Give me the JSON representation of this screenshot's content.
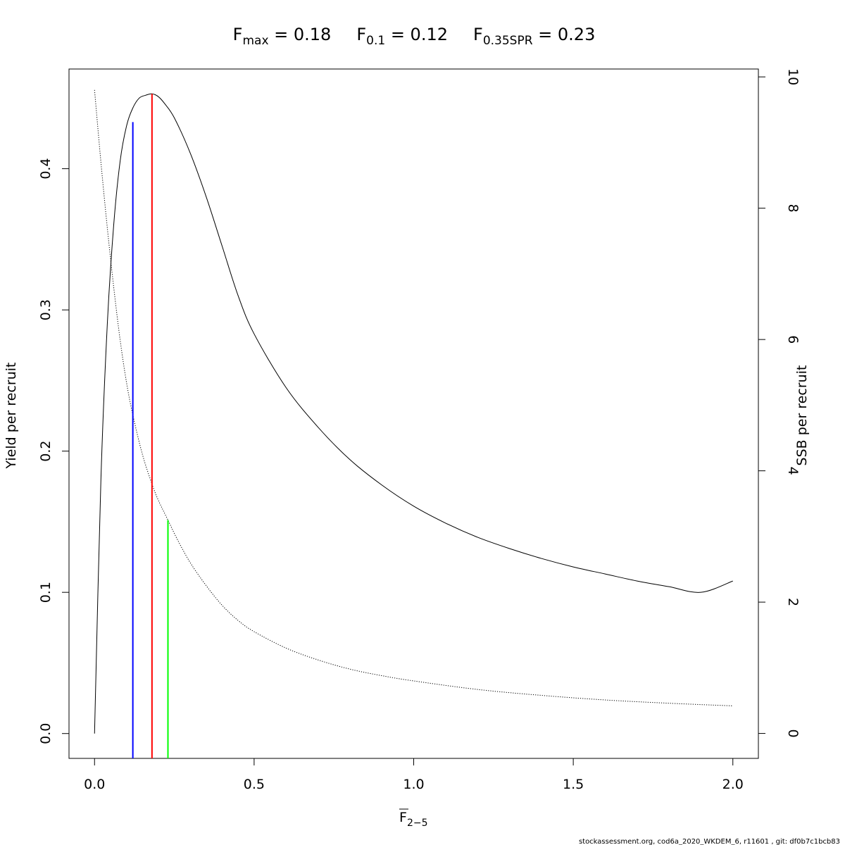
{
  "chart_data": {
    "type": "line",
    "title": {
      "parts": [
        {
          "base": "F",
          "sub": "max",
          "value": " = 0.18"
        },
        {
          "base": "F",
          "sub": "0.1",
          "value": " = 0.12"
        },
        {
          "base": "F",
          "sub": "0.35SPR",
          "value": " = 0.23"
        }
      ]
    },
    "xlabel": {
      "base": "F",
      "sub": "2−5"
    },
    "ylabel_left": "Yield per recruit",
    "ylabel_right": "SSB per recruit",
    "xlim": [
      -0.08,
      2.08
    ],
    "ylim_left": [
      -0.0176,
      0.4706
    ],
    "ylim_right": [
      -0.38,
      10.12
    ],
    "x_ticks": [
      0,
      0.5,
      1,
      1.5,
      2
    ],
    "x_tick_labels": [
      "0.0",
      "0.5",
      "1.0",
      "1.5",
      "2.0"
    ],
    "y_left_ticks": [
      0,
      0.1,
      0.2,
      0.3,
      0.4
    ],
    "y_left_tick_labels": [
      "0.0",
      "0.1",
      "0.2",
      "0.3",
      "0.4"
    ],
    "y_right_ticks": [
      0,
      2,
      4,
      6,
      8,
      10
    ],
    "y_right_tick_labels": [
      "0",
      "2",
      "4",
      "6",
      "8",
      "10"
    ],
    "series": [
      {
        "axis": "left",
        "style": "solid",
        "x": [
          0,
          0.02,
          0.04,
          0.06,
          0.08,
          0.1,
          0.12,
          0.14,
          0.16,
          0.18,
          0.2,
          0.22,
          0.25,
          0.3,
          0.35,
          0.4,
          0.45,
          0.5,
          0.6,
          0.7,
          0.8,
          0.9,
          1.0,
          1.1,
          1.2,
          1.3,
          1.4,
          1.5,
          1.6,
          1.7,
          1.8,
          1.9,
          2.0
        ],
        "values": [
          0.0,
          0.18,
          0.29,
          0.36,
          0.405,
          0.43,
          0.443,
          0.45,
          0.452,
          0.453,
          0.451,
          0.446,
          0.436,
          0.411,
          0.38,
          0.345,
          0.31,
          0.283,
          0.245,
          0.217,
          0.194,
          0.176,
          0.161,
          0.149,
          0.139,
          0.131,
          0.124,
          0.118,
          0.113,
          0.108,
          0.104,
          0.1,
          0.108
        ]
      },
      {
        "axis": "right",
        "style": "dotted",
        "x": [
          0,
          0.02,
          0.04,
          0.06,
          0.08,
          0.1,
          0.12,
          0.15,
          0.18,
          0.2,
          0.23,
          0.26,
          0.3,
          0.35,
          0.4,
          0.45,
          0.5,
          0.6,
          0.7,
          0.8,
          0.9,
          1.0,
          1.2,
          1.4,
          1.6,
          1.8,
          2.0
        ],
        "values": [
          9.8,
          8.7,
          7.7,
          6.8,
          6.0,
          5.35,
          4.85,
          4.25,
          3.8,
          3.55,
          3.25,
          2.95,
          2.6,
          2.25,
          1.95,
          1.72,
          1.55,
          1.3,
          1.12,
          0.98,
          0.88,
          0.8,
          0.67,
          0.58,
          0.51,
          0.46,
          0.42
        ]
      }
    ],
    "reference_lines": [
      {
        "x": 0.12,
        "top": 0.433,
        "axis": "left",
        "color": "#0000ff"
      },
      {
        "x": 0.18,
        "top": 0.453,
        "axis": "left",
        "color": "#ff0000"
      },
      {
        "x": 0.23,
        "top": 3.25,
        "axis": "right",
        "color": "#00ff00"
      }
    ],
    "grid": false,
    "legend": "none"
  },
  "footer_text": "stockassessment.org, cod6a_2020_WKDEM_6, r11601 , git: df0b7c1bcb83"
}
